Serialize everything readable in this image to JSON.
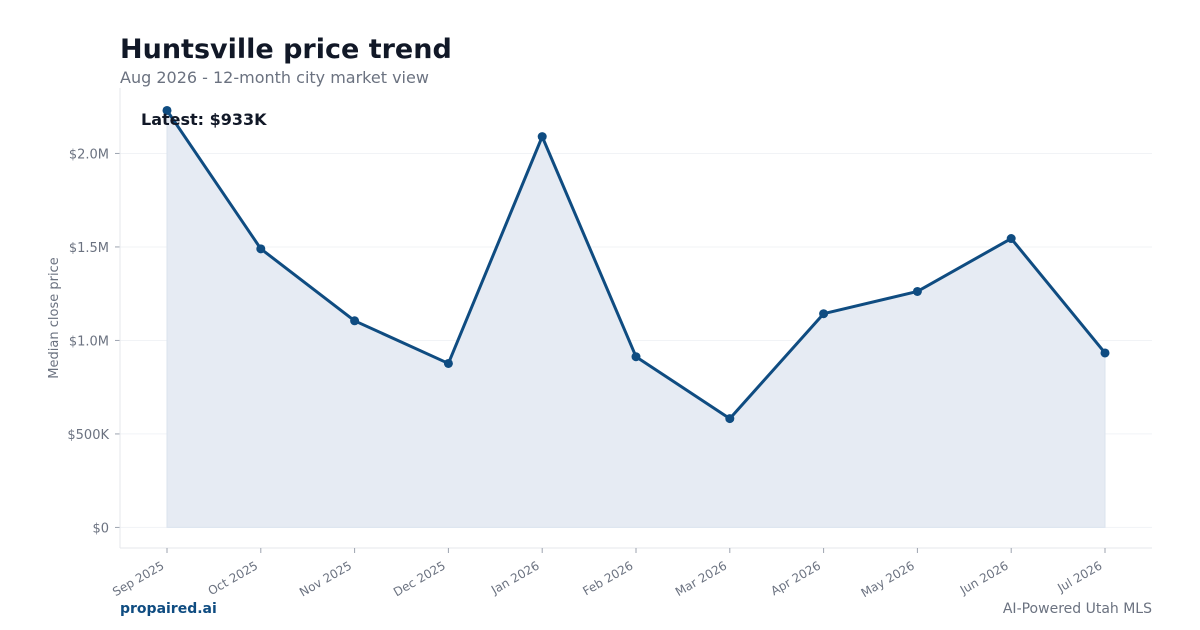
{
  "header": {
    "title": "Huntsville price trend",
    "subtitle": "Aug 2026 - 12-month city market view"
  },
  "footer": {
    "brand": "propaired.ai",
    "tagline": "AI-Powered Utah MLS"
  },
  "colors": {
    "line": "#0f4c81",
    "fill": "#e6ebf3",
    "grid": "#f1f3f6",
    "axis": "#e5e7eb"
  },
  "chart_data": {
    "type": "area",
    "title": "Huntsville price trend",
    "subtitle": "Aug 2026 - 12-month city market view",
    "ylabel": "Median close price",
    "xlabel": "",
    "categories": [
      "Sep 2025",
      "Oct 2025",
      "Nov 2025",
      "Dec 2025",
      "Jan 2026",
      "Feb 2026",
      "Mar 2026",
      "Apr 2026",
      "May 2026",
      "Jun 2026",
      "Jul 2026"
    ],
    "values": [
      2230000,
      1490000,
      1105000,
      877000,
      2090000,
      913000,
      582000,
      1143000,
      1262000,
      1545000,
      933000
    ],
    "ylim": [
      -110000,
      2350000
    ],
    "yticks": [
      0,
      500000,
      1000000,
      1500000,
      2000000
    ],
    "ytick_labels": [
      "$0",
      "$500K",
      "$1.0M",
      "$1.5M",
      "$2.0M"
    ],
    "annotation": "Latest: $933K",
    "grid": true,
    "legend": "none"
  }
}
